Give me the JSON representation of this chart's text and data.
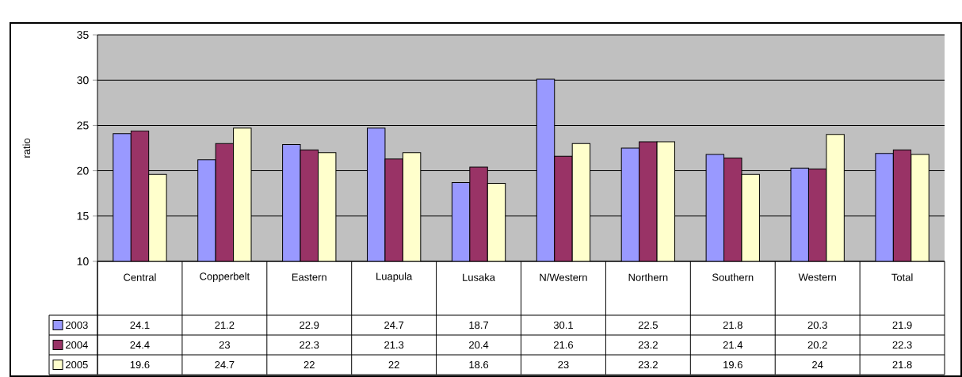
{
  "chart_data": {
    "type": "bar",
    "ylabel": "ratio",
    "categories": [
      "Central",
      "Copperbelt",
      "Eastern",
      "Luapula",
      "Lusaka",
      "N/Western",
      "Northern",
      "Southern",
      "Western",
      "Total"
    ],
    "series": [
      {
        "name": "2003",
        "color": "#9999ff",
        "values": [
          24.1,
          21.2,
          22.9,
          24.7,
          18.7,
          30.1,
          22.5,
          21.8,
          20.3,
          21.9
        ]
      },
      {
        "name": "2004",
        "color": "#993366",
        "values": [
          24.4,
          23,
          22.3,
          21.3,
          20.4,
          21.6,
          23.2,
          21.4,
          20.2,
          22.3
        ]
      },
      {
        "name": "2005",
        "color": "#ffffcc",
        "values": [
          19.6,
          24.7,
          22,
          22,
          18.6,
          23,
          23.2,
          19.6,
          24,
          21.8
        ]
      }
    ],
    "ylim": [
      10,
      35
    ],
    "yticks": [
      10,
      15,
      20,
      25,
      30,
      35
    ],
    "grid": "y",
    "legend": "bottom left",
    "data_labels": true
  }
}
